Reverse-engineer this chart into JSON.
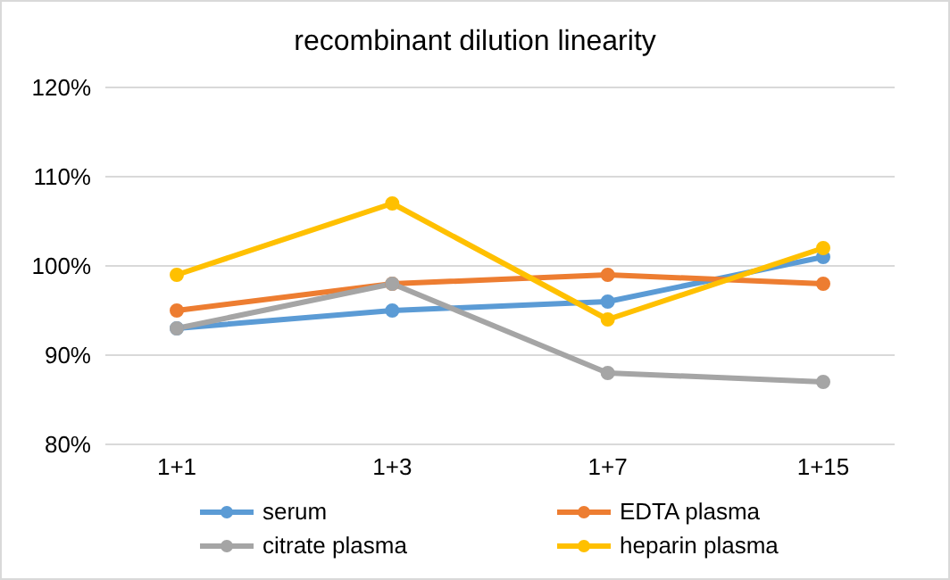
{
  "chart_data": {
    "type": "line",
    "title": "recombinant dilution linearity",
    "categories": [
      "1+1",
      "1+3",
      "1+7",
      "1+15"
    ],
    "series": [
      {
        "name": "serum",
        "color": "#5b9bd5",
        "values": [
          93,
          95,
          96,
          101
        ]
      },
      {
        "name": "EDTA plasma",
        "color": "#ed7d31",
        "values": [
          95,
          98,
          99,
          98
        ]
      },
      {
        "name": "citrate plasma",
        "color": "#a5a5a5",
        "values": [
          93,
          98,
          88,
          87
        ]
      },
      {
        "name": "heparin plasma",
        "color": "#ffc000",
        "values": [
          99,
          107,
          94,
          102
        ]
      }
    ],
    "ylim": [
      80,
      120
    ],
    "yticks": [
      {
        "value": 80,
        "label": "80%"
      },
      {
        "value": 90,
        "label": "90%"
      },
      {
        "value": 100,
        "label": "100%"
      },
      {
        "value": 110,
        "label": "110%"
      },
      {
        "value": 120,
        "label": "120%"
      }
    ],
    "grid": "y",
    "legend": "bottom",
    "marker": "circle",
    "line_style": "solid"
  }
}
